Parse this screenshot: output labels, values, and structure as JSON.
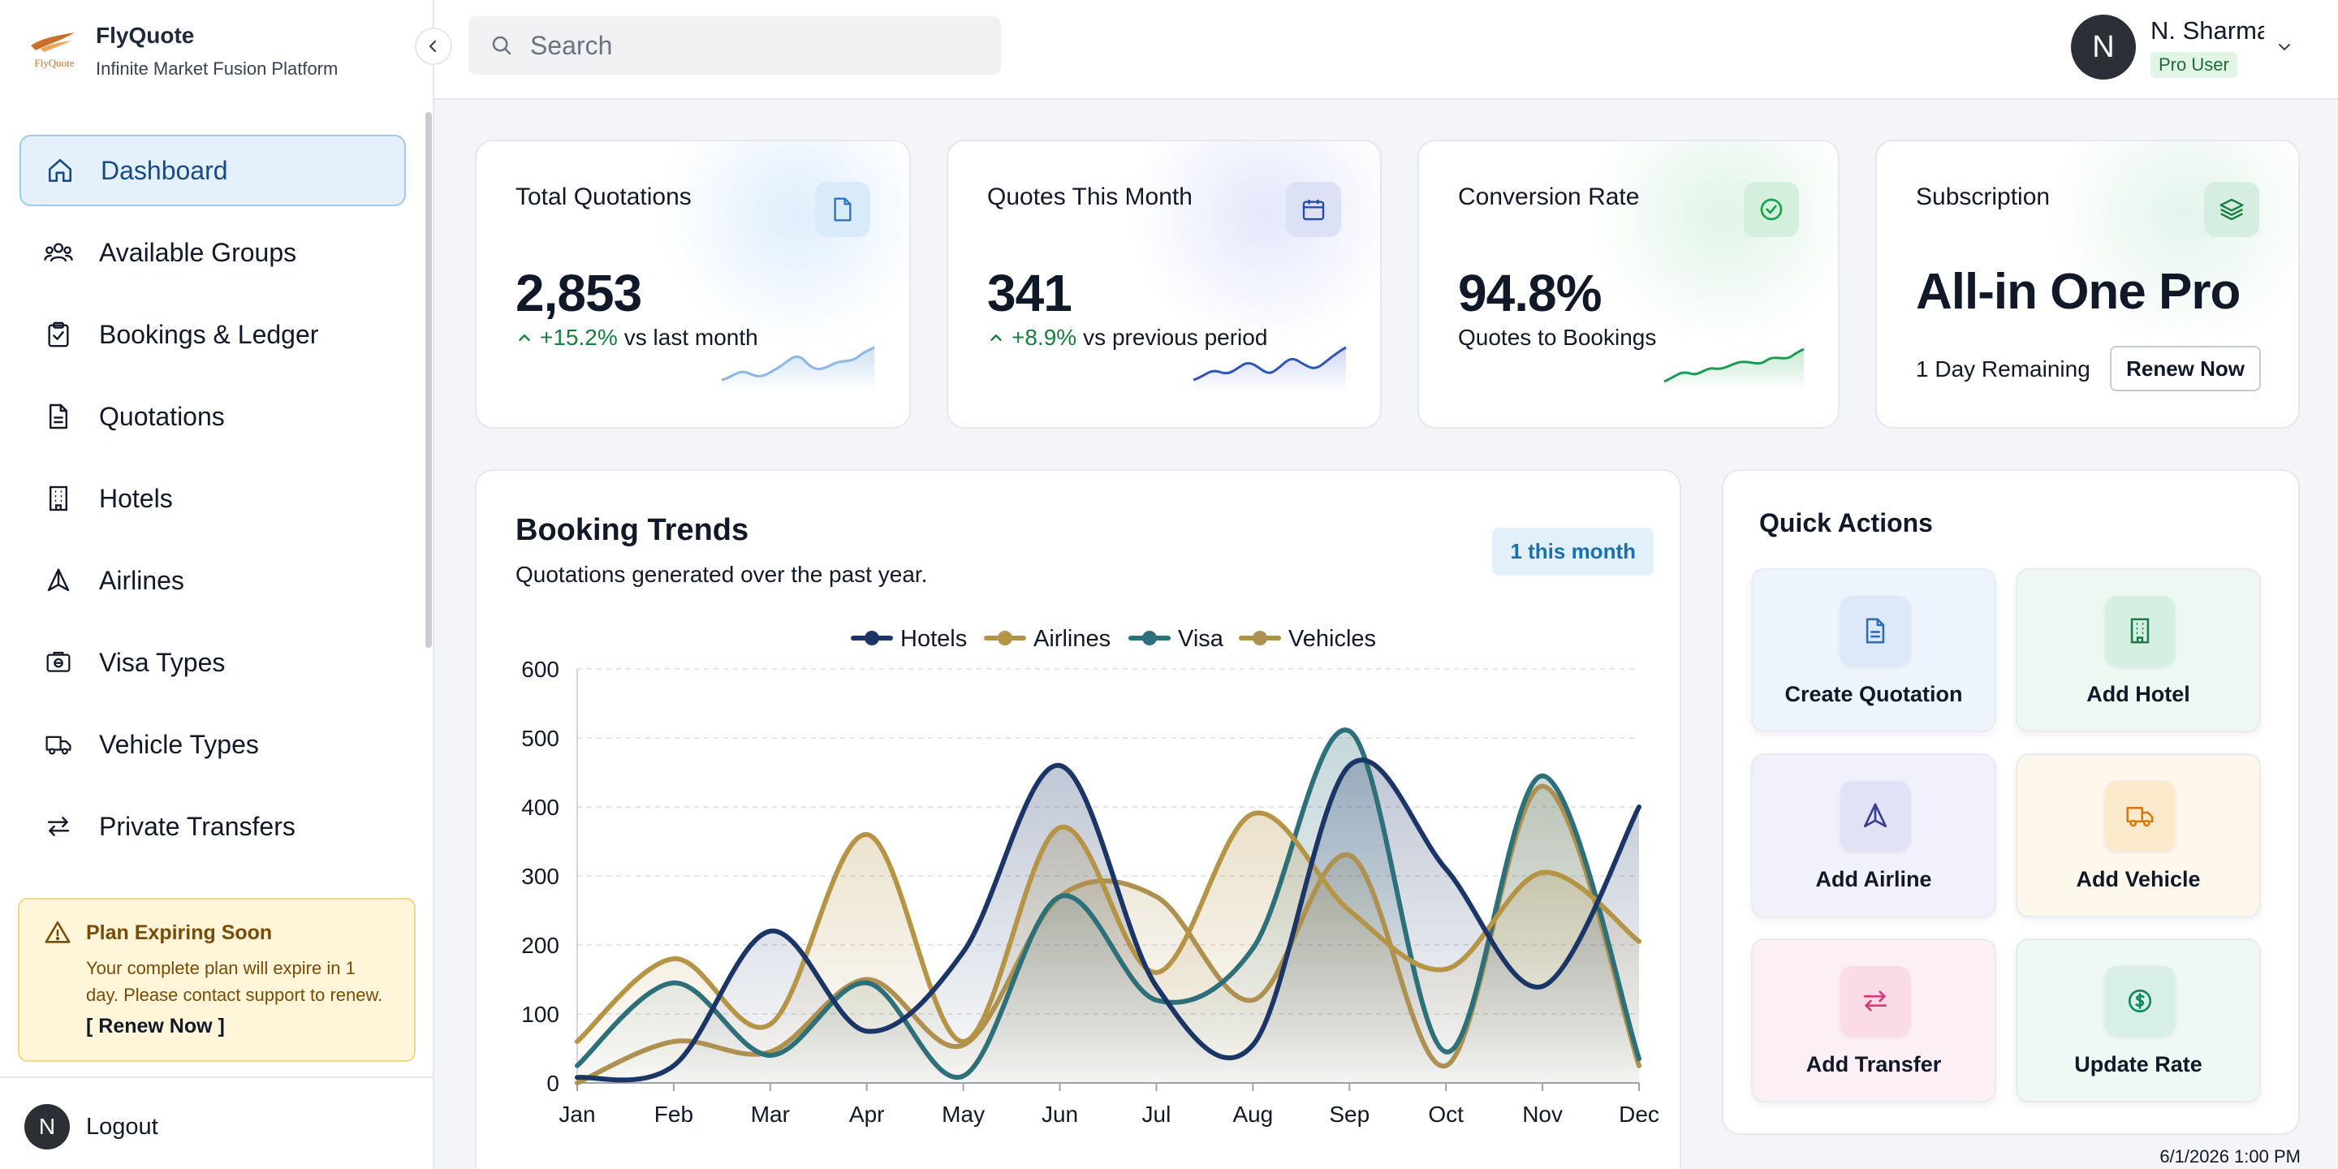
{
  "brand": {
    "name": "FlyQuote",
    "tagline": "Infinite Market Fusion Platform",
    "logo_text": "FlyQuote"
  },
  "search": {
    "placeholder": "Search",
    "value": ""
  },
  "user": {
    "initial": "N",
    "name": "N. Sharma",
    "badge": "Pro User"
  },
  "sidebar": {
    "items": [
      {
        "label": "Dashboard",
        "icon": "home-icon",
        "active": true
      },
      {
        "label": "Available Groups",
        "icon": "users-icon"
      },
      {
        "label": "Bookings & Ledger",
        "icon": "clipboard-check-icon"
      },
      {
        "label": "Quotations",
        "icon": "file-icon"
      },
      {
        "label": "Hotels",
        "icon": "building-icon"
      },
      {
        "label": "Airlines",
        "icon": "plane-icon"
      },
      {
        "label": "Visa Types",
        "icon": "passport-icon"
      },
      {
        "label": "Vehicle Types",
        "icon": "truck-icon"
      },
      {
        "label": "Private Transfers",
        "icon": "arrows-exchange-icon"
      }
    ],
    "alert": {
      "title": "Plan Expiring Soon",
      "line1": "Your complete plan will expire in 1",
      "line2": "day. Please contact support to renew.",
      "link": "[ Renew Now ]"
    },
    "logout": {
      "initial": "N",
      "label": "Logout"
    }
  },
  "stats": [
    {
      "title": "Total Quotations",
      "value": "2,853",
      "change": "+15.2%",
      "change_text": "vs last month",
      "icon": "file-icon",
      "accent": "#3b82c4"
    },
    {
      "title": "Quotes This Month",
      "value": "341",
      "change": "+8.9%",
      "change_text": "vs previous period",
      "icon": "calendar-icon",
      "accent": "#1e4fa8"
    },
    {
      "title": "Conversion Rate",
      "value": "94.8%",
      "caption": "Quotes to Bookings",
      "icon": "check-circle-icon",
      "accent": "#16a34a"
    },
    {
      "title": "Subscription",
      "value": "All-in One Pro",
      "remaining": "1 Day Remaining",
      "button": "Renew Now",
      "icon": "layers-icon",
      "accent": "#15803d"
    }
  ],
  "trends": {
    "title": "Booking Trends",
    "subtitle": "Quotations generated over the past year.",
    "badge": "1 this month"
  },
  "chart_data": {
    "type": "line",
    "categories": [
      "Jan",
      "Feb",
      "Mar",
      "Apr",
      "May",
      "Jun",
      "Jul",
      "Aug",
      "Sep",
      "Oct",
      "Nov",
      "Dec"
    ],
    "ylim": [
      0,
      600
    ],
    "yticks": [
      0,
      100,
      200,
      300,
      400,
      500,
      600
    ],
    "grid": true,
    "legend": "top",
    "series": [
      {
        "name": "Hotels",
        "color": "#1b3566",
        "values": [
          8,
          25,
          220,
          75,
          190,
          460,
          140,
          55,
          460,
          310,
          140,
          400
        ]
      },
      {
        "name": "Airlines",
        "color": "#b59446",
        "values": [
          60,
          180,
          85,
          360,
          60,
          370,
          160,
          390,
          250,
          165,
          305,
          205
        ]
      },
      {
        "name": "Visa",
        "color": "#2e7079",
        "values": [
          25,
          145,
          40,
          145,
          10,
          270,
          120,
          195,
          510,
          45,
          445,
          35
        ]
      },
      {
        "name": "Vehicles",
        "color": "#ae9150",
        "values": [
          0,
          60,
          45,
          150,
          55,
          270,
          270,
          120,
          330,
          25,
          430,
          25
        ]
      }
    ]
  },
  "quick_actions": {
    "title": "Quick Actions",
    "items": [
      {
        "label": "Create Quotation",
        "icon": "file-icon",
        "bg": "#eef4fc",
        "icon_bg": "#dde9f8",
        "color": "#2f6db3"
      },
      {
        "label": "Add Hotel",
        "icon": "building-icon",
        "bg": "#edf8f3",
        "icon_bg": "#d5efe2",
        "color": "#1f7a4a"
      },
      {
        "label": "Add Airline",
        "icon": "plane-icon",
        "bg": "#f1f1fb",
        "icon_bg": "#e1e2f5",
        "color": "#3b3f8f"
      },
      {
        "label": "Add Vehicle",
        "icon": "truck-icon",
        "bg": "#fdf7ec",
        "icon_bg": "#fbe9cc",
        "color": "#d97706"
      },
      {
        "label": "Add Transfer",
        "icon": "arrows-exchange-icon",
        "bg": "#fdf0f4",
        "icon_bg": "#fadbe6",
        "color": "#d63b78"
      },
      {
        "label": "Update Rate",
        "icon": "dollar-circle-icon",
        "bg": "#eef8f5",
        "icon_bg": "#d7efe7",
        "color": "#0f8a5f"
      }
    ]
  },
  "timestamp": "6/1/2026 1:00 PM"
}
